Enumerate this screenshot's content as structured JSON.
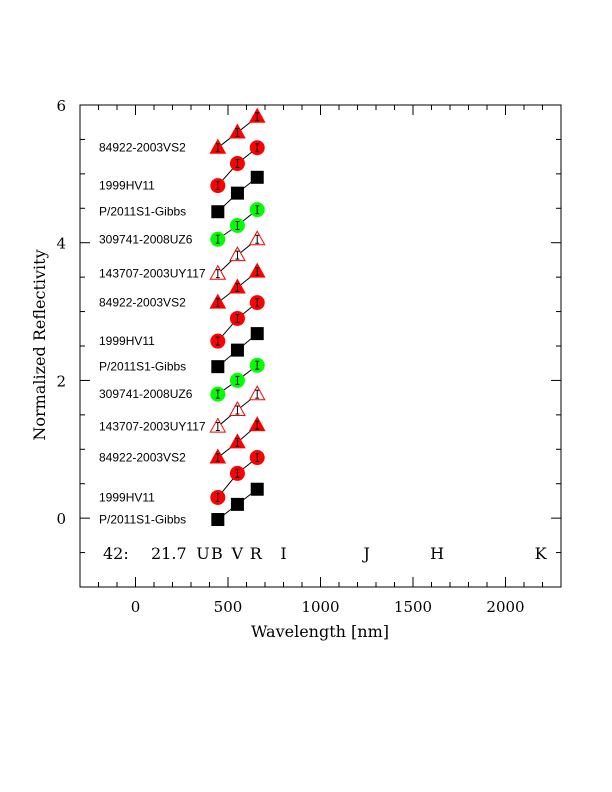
{
  "chart_data": {
    "type": "scatter",
    "xlabel": "Wavelength [nm]",
    "ylabel": "Normalized Reflectivity",
    "xlim": [
      -300,
      2300
    ],
    "ylim": [
      -1,
      6
    ],
    "x_ticks": [
      0,
      500,
      1000,
      1500,
      2000
    ],
    "y_ticks": [
      0,
      2,
      4,
      6
    ],
    "x_tick_labels": [
      "0",
      "500",
      "1000",
      "1500",
      "2000"
    ],
    "y_tick_labels": [
      "0",
      "2",
      "4",
      "6"
    ],
    "annotation": {
      "id": "42:",
      "value": "21.7"
    },
    "band_labels": [
      {
        "label": "U",
        "x": 365
      },
      {
        "label": "B",
        "x": 440
      },
      {
        "label": "V",
        "x": 550
      },
      {
        "label": "R",
        "x": 650
      },
      {
        "label": "I",
        "x": 800
      },
      {
        "label": "J",
        "x": 1250
      },
      {
        "label": "H",
        "x": 1630
      },
      {
        "label": "K",
        "x": 2190
      }
    ],
    "series": [
      {
        "name": "P/2011S1-Gibbs",
        "marker": "square",
        "color": "#000000",
        "filled": true,
        "x": [
          445,
          551,
          658
        ],
        "y": [
          -0.02,
          0.2,
          0.42
        ]
      },
      {
        "name": "1999HV11",
        "marker": "circle",
        "color": "#ff0000",
        "filled": true,
        "x": [
          445,
          551,
          658
        ],
        "y": [
          0.3,
          0.65,
          0.88
        ]
      },
      {
        "name": "84922-2003VS2",
        "marker": "triangle",
        "color": "#ff0000",
        "filled": true,
        "x": [
          445,
          551,
          658
        ],
        "y": [
          0.88,
          1.1,
          1.35
        ]
      },
      {
        "name": "143707-2003UY117",
        "marker": "triangle-open",
        "color": "#ff0000",
        "filled": false,
        "x": [
          445,
          551,
          658
        ],
        "y": [
          1.33,
          1.57,
          1.8
        ]
      },
      {
        "name": "309741-2008UZ6",
        "marker": "circle",
        "color": "#00ff00",
        "filled": true,
        "x": [
          445,
          551,
          658
        ],
        "y": [
          1.8,
          2.0,
          2.22
        ]
      },
      {
        "name": "P/2011S1-Gibbs",
        "marker": "square",
        "color": "#000000",
        "filled": true,
        "x": [
          445,
          551,
          658
        ],
        "y": [
          2.2,
          2.44,
          2.68
        ]
      },
      {
        "name": "1999HV11",
        "marker": "circle",
        "color": "#ff0000",
        "filled": true,
        "x": [
          445,
          551,
          658
        ],
        "y": [
          2.57,
          2.9,
          3.13
        ]
      },
      {
        "name": "84922-2003VS2",
        "marker": "triangle",
        "color": "#ff0000",
        "filled": true,
        "x": [
          445,
          551,
          658
        ],
        "y": [
          3.13,
          3.35,
          3.58
        ]
      },
      {
        "name": "143707-2003UY117",
        "marker": "triangle-open",
        "color": "#ff0000",
        "filled": false,
        "x": [
          445,
          551,
          658
        ],
        "y": [
          3.55,
          3.82,
          4.05
        ]
      },
      {
        "name": "309741-2008UZ6",
        "marker": "circle",
        "color": "#00ff00",
        "filled": true,
        "x": [
          445,
          551,
          658
        ],
        "y": [
          4.05,
          4.25,
          4.48
        ]
      },
      {
        "name": "P/2011S1-Gibbs",
        "marker": "square",
        "color": "#000000",
        "filled": true,
        "x": [
          445,
          551,
          658
        ],
        "y": [
          4.45,
          4.72,
          4.95
        ]
      },
      {
        "name": "1999HV11",
        "marker": "circle",
        "color": "#ff0000",
        "filled": true,
        "x": [
          445,
          551,
          658
        ],
        "y": [
          4.83,
          5.15,
          5.38
        ]
      },
      {
        "name": "84922-2003VS2",
        "marker": "triangle",
        "color": "#ff0000",
        "filled": true,
        "x": [
          445,
          551,
          658
        ],
        "y": [
          5.38,
          5.6,
          5.83
        ]
      }
    ]
  }
}
